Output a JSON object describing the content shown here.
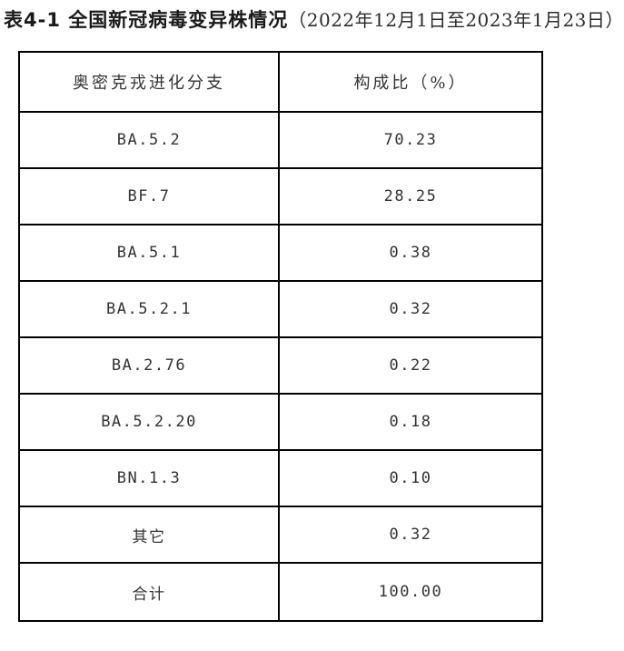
{
  "title": {
    "main": "表4-1 全国新冠病毒变异株情况",
    "period": "（2022年12月1日至2023年1月23日）"
  },
  "table": {
    "headers": [
      "奥密克戎进化分支",
      "构成比（%）"
    ],
    "rows": [
      [
        "BA.5.2",
        "70.23"
      ],
      [
        "BF.7",
        "28.25"
      ],
      [
        "BA.5.1",
        "0.38"
      ],
      [
        "BA.5.2.1",
        "0.32"
      ],
      [
        "BA.2.76",
        "0.22"
      ],
      [
        "BA.5.2.20",
        "0.18"
      ],
      [
        "BN.1.3",
        "0.10"
      ],
      [
        "其它",
        "0.32"
      ],
      [
        "合计",
        "100.00"
      ]
    ]
  },
  "colors": {
    "background": "#ffffff",
    "border": "#000000",
    "cell_text": "#333333",
    "title_text": "#1a1a1a"
  }
}
